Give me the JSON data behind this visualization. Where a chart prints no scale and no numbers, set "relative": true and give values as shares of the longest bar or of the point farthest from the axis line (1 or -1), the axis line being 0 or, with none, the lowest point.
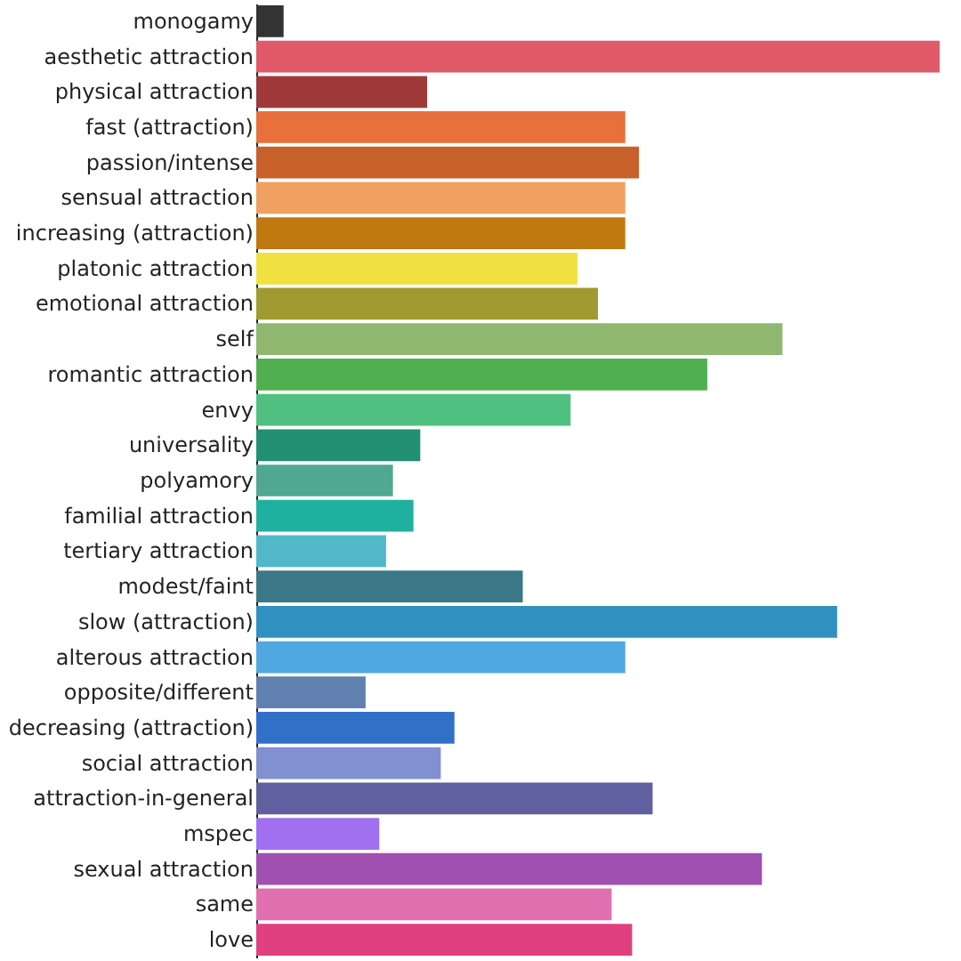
{
  "chart_data": {
    "type": "bar",
    "orientation": "horizontal",
    "relative": true,
    "categories": [
      "monogamy",
      "aesthetic attraction",
      "physical attraction",
      "fast (attraction)",
      "passion/intense",
      "sensual attraction",
      "increasing (attraction)",
      "platonic attraction",
      "emotional attraction",
      "self",
      "romantic attraction",
      "envy",
      "universality",
      "polyamory",
      "familial attraction",
      "tertiary attraction",
      "modest/faint",
      "slow (attraction)",
      "alterous attraction",
      "opposite/different",
      "decreasing (attraction)",
      "social attraction",
      "attraction-in-general",
      "mspec",
      "sexual attraction",
      "same",
      "love"
    ],
    "values": [
      0.04,
      1,
      0.25,
      0.54,
      0.56,
      0.54,
      0.54,
      0.47,
      0.5,
      0.77,
      0.66,
      0.46,
      0.24,
      0.2,
      0.23,
      0.19,
      0.39,
      0.85,
      0.54,
      0.16,
      0.29,
      0.27,
      0.58,
      0.18,
      0.74,
      0.52,
      0.55
    ],
    "colors": [
      "#333333",
      "#e05a6a",
      "#a03a3a",
      "#e8703a",
      "#c8602a",
      "#f0a060",
      "#c07810",
      "#f0e040",
      "#a09a30",
      "#90b870",
      "#50b050",
      "#50c080",
      "#209070",
      "#50a890",
      "#20b0a0",
      "#50b8c8",
      "#3a7888",
      "#3090c0",
      "#50a8e0",
      "#6080b0",
      "#3070c8",
      "#8090d0",
      "#6060a0",
      "#a070f0",
      "#a050b0",
      "#e070b0",
      "#e04080"
    ]
  }
}
